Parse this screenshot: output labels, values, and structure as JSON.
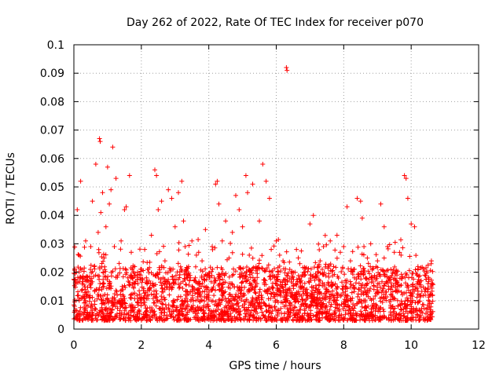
{
  "chart_data": {
    "type": "scatter",
    "title": "Day 262 of 2022, Rate Of TEC Index for receiver p070",
    "xlabel": "GPS time / hours",
    "ylabel": "ROTI / TECUs",
    "xlim": [
      0,
      12
    ],
    "ylim": [
      0,
      0.1
    ],
    "x_ticks": [
      "0",
      "2",
      "4",
      "6",
      "8",
      "10",
      "12"
    ],
    "y_ticks": [
      "0",
      "0.01",
      "0.02",
      "0.03",
      "0.04",
      "0.05",
      "0.06",
      "0.07",
      "0.08",
      "0.09",
      "0.1"
    ],
    "grid": true,
    "legend": "none",
    "marker": "+",
    "color": "#ff0000",
    "series": [
      {
        "x": [
          0.02,
          0.1,
          0.15,
          0.2,
          0.28,
          0.35,
          0.42,
          0.5,
          0.55,
          0.6,
          0.65,
          0.72,
          0.76,
          0.78,
          0.8,
          0.85,
          0.9,
          0.95,
          1.0,
          1.05,
          1.1,
          1.15,
          1.2,
          1.25,
          1.3,
          1.4,
          1.5,
          1.55,
          1.6,
          1.65,
          1.7,
          1.8,
          1.9,
          2.0,
          2.1,
          2.2,
          2.3,
          2.4,
          2.45,
          2.5,
          2.6,
          2.7,
          2.8,
          2.9,
          3.0,
          3.1,
          3.2,
          3.25,
          3.3,
          3.4,
          3.5,
          3.6,
          3.7,
          3.8,
          3.9,
          4.0,
          4.1,
          4.2,
          4.25,
          4.3,
          4.4,
          4.5,
          4.6,
          4.7,
          4.8,
          4.9,
          5.0,
          5.1,
          5.15,
          5.2,
          5.3,
          5.4,
          5.5,
          5.6,
          5.7,
          5.8,
          5.85,
          5.9,
          6.0,
          6.1,
          6.2,
          6.3,
          6.32,
          6.4,
          6.5,
          6.6,
          6.7,
          6.8,
          6.9,
          7.0,
          7.1,
          7.2,
          7.3,
          7.4,
          7.5,
          7.6,
          7.7,
          7.8,
          7.9,
          8.0,
          8.1,
          8.2,
          8.3,
          8.4,
          8.5,
          8.55,
          8.6,
          8.7,
          8.8,
          8.9,
          9.0,
          9.1,
          9.2,
          9.3,
          9.4,
          9.5,
          9.6,
          9.7,
          9.8,
          9.85,
          9.9,
          10.0,
          10.1,
          10.2,
          10.3,
          10.4,
          10.5,
          10.6
        ],
        "y": [
          0.008,
          0.042,
          0.026,
          0.052,
          0.018,
          0.031,
          0.012,
          0.029,
          0.045,
          0.022,
          0.058,
          0.034,
          0.067,
          0.066,
          0.041,
          0.048,
          0.025,
          0.036,
          0.057,
          0.044,
          0.049,
          0.064,
          0.029,
          0.053,
          0.019,
          0.031,
          0.042,
          0.043,
          0.018,
          0.054,
          0.027,
          0.022,
          0.016,
          0.011,
          0.028,
          0.021,
          0.033,
          0.056,
          0.054,
          0.042,
          0.045,
          0.024,
          0.049,
          0.046,
          0.036,
          0.048,
          0.052,
          0.038,
          0.029,
          0.022,
          0.031,
          0.018,
          0.027,
          0.024,
          0.035,
          0.019,
          0.029,
          0.051,
          0.052,
          0.044,
          0.031,
          0.038,
          0.025,
          0.034,
          0.047,
          0.042,
          0.036,
          0.054,
          0.048,
          0.026,
          0.051,
          0.022,
          0.038,
          0.058,
          0.052,
          0.046,
          0.028,
          0.019,
          0.031,
          0.026,
          0.024,
          0.092,
          0.091,
          0.021,
          0.016,
          0.028,
          0.023,
          0.019,
          0.012,
          0.037,
          0.04,
          0.018,
          0.024,
          0.029,
          0.014,
          0.031,
          0.022,
          0.033,
          0.027,
          0.029,
          0.043,
          0.024,
          0.021,
          0.046,
          0.045,
          0.039,
          0.029,
          0.025,
          0.03,
          0.018,
          0.024,
          0.044,
          0.036,
          0.029,
          0.021,
          0.027,
          0.015,
          0.026,
          0.054,
          0.053,
          0.046,
          0.037,
          0.036,
          0.022,
          0.017,
          0.019,
          0.016,
          0.024
        ]
      }
    ],
    "dense_band": {
      "x_range": [
        0,
        10.65
      ],
      "y_min": 0.003,
      "y_max": 0.022
    }
  }
}
